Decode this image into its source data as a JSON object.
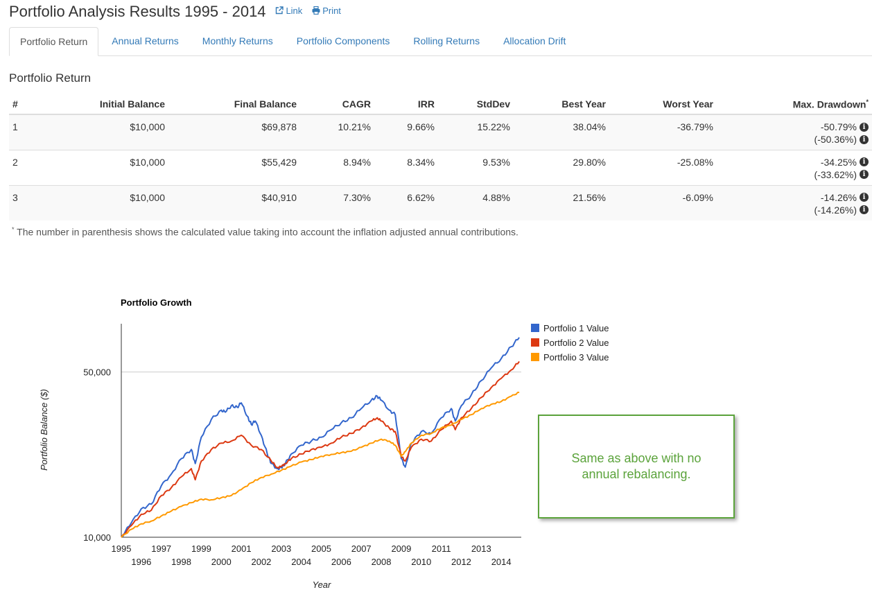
{
  "header": {
    "title": "Portfolio Analysis Results 1995 - 2014",
    "link_label": "Link",
    "print_label": "Print"
  },
  "tabs": [
    "Portfolio Return",
    "Annual Returns",
    "Monthly Returns",
    "Portfolio Components",
    "Rolling Returns",
    "Allocation Drift"
  ],
  "section_title": "Portfolio Return",
  "table": {
    "headers": [
      "#",
      "Initial Balance",
      "Final Balance",
      "CAGR",
      "IRR",
      "StdDev",
      "Best Year",
      "Worst Year",
      "Max. Drawdown"
    ],
    "header_note_marker": "*",
    "rows": [
      {
        "num": "1",
        "initial": "$10,000",
        "final": "$69,878",
        "cagr": "10.21%",
        "irr": "9.66%",
        "stddev": "15.22%",
        "best": "38.04%",
        "worst": "-36.79%",
        "dd": "-50.79%",
        "dd_adj": "(-50.36%)"
      },
      {
        "num": "2",
        "initial": "$10,000",
        "final": "$55,429",
        "cagr": "8.94%",
        "irr": "8.34%",
        "stddev": "9.53%",
        "best": "29.80%",
        "worst": "-25.08%",
        "dd": "-34.25%",
        "dd_adj": "(-33.62%)"
      },
      {
        "num": "3",
        "initial": "$10,000",
        "final": "$40,910",
        "cagr": "7.30%",
        "irr": "6.62%",
        "stddev": "4.88%",
        "best": "21.56%",
        "worst": "-6.09%",
        "dd": "-14.26%",
        "dd_adj": "(-14.26%)"
      }
    ]
  },
  "footnote": {
    "marker": "*",
    "text": " The number in parenthesis shows the calculated value taking into account the inflation adjusted annual contributions."
  },
  "callout": {
    "text": "Same as above with no annual rebalancing."
  },
  "colors": {
    "link": "#337ab7",
    "callout": "#5ba33b",
    "series1": "#3366cc",
    "series2": "#dc3912",
    "series3": "#ff9900"
  },
  "chart_data": {
    "type": "line",
    "title": "Portfolio Growth",
    "xlabel": "Year",
    "ylabel": "Portfolio Balance ($)",
    "yscale": "log",
    "ylim": [
      10000,
      80000
    ],
    "yticks": [
      10000,
      50000
    ],
    "ytick_labels": [
      "10,000",
      "50,000"
    ],
    "xlim": [
      1995,
      2015
    ],
    "xticks": [
      1995,
      1996,
      1997,
      1998,
      1999,
      2000,
      2001,
      2002,
      2003,
      2004,
      2005,
      2006,
      2007,
      2008,
      2009,
      2010,
      2011,
      2012,
      2013,
      2014
    ],
    "grid": true,
    "legend_position": "right",
    "series": [
      {
        "name": "Portfolio 1 Value",
        "color": "#3366cc",
        "x": [
          1995.0,
          1995.5,
          1996.0,
          1996.5,
          1997.0,
          1997.5,
          1998.0,
          1998.5,
          1998.7,
          1999.0,
          1999.5,
          2000.0,
          2000.2,
          2000.5,
          2000.8,
          2001.0,
          2001.3,
          2001.5,
          2001.7,
          2002.0,
          2002.3,
          2002.5,
          2002.8,
          2003.0,
          2003.2,
          2003.5,
          2004.0,
          2004.5,
          2005.0,
          2005.5,
          2006.0,
          2006.5,
          2007.0,
          2007.5,
          2007.8,
          2008.0,
          2008.4,
          2008.7,
          2009.0,
          2009.2,
          2009.5,
          2010.0,
          2010.5,
          2011.0,
          2011.5,
          2011.7,
          2012.0,
          2012.5,
          2013.0,
          2013.5,
          2014.0,
          2014.5,
          2014.9
        ],
        "values": [
          10000,
          11500,
          13200,
          13800,
          16500,
          18500,
          21500,
          23500,
          20500,
          26500,
          31500,
          34500,
          33800,
          36000,
          35500,
          37000,
          32500,
          30000,
          31000,
          27000,
          22500,
          20500,
          19500,
          19700,
          20500,
          22500,
          24500,
          25500,
          26500,
          28500,
          30500,
          32000,
          35000,
          38000,
          39500,
          38000,
          34500,
          33000,
          21500,
          19800,
          25000,
          28000,
          27500,
          32000,
          35000,
          31000,
          36000,
          40000,
          46000,
          52000,
          57000,
          64000,
          70000
        ]
      },
      {
        "name": "Portfolio 2 Value",
        "color": "#dc3912",
        "x": [
          1995.0,
          1995.5,
          1996.0,
          1996.5,
          1997.0,
          1997.5,
          1998.0,
          1998.5,
          1998.7,
          1999.0,
          1999.5,
          2000.0,
          2000.5,
          2001.0,
          2001.5,
          2002.0,
          2002.5,
          2002.8,
          2003.0,
          2003.2,
          2003.5,
          2004.0,
          2004.5,
          2005.0,
          2005.5,
          2006.0,
          2006.5,
          2007.0,
          2007.5,
          2007.8,
          2008.0,
          2008.4,
          2008.7,
          2009.0,
          2009.2,
          2009.5,
          2010.0,
          2010.5,
          2011.0,
          2011.5,
          2011.7,
          2012.0,
          2012.5,
          2013.0,
          2013.5,
          2014.0,
          2014.5,
          2014.9
        ],
        "values": [
          10000,
          11200,
          12500,
          13000,
          15000,
          16200,
          18000,
          19500,
          17500,
          21000,
          23500,
          25000,
          25500,
          27000,
          24500,
          23500,
          21000,
          19700,
          19900,
          20500,
          21500,
          22500,
          23500,
          24000,
          25000,
          26500,
          27500,
          29000,
          31000,
          32000,
          31000,
          29000,
          28000,
          22000,
          21000,
          24000,
          26000,
          25500,
          28500,
          31000,
          28500,
          32000,
          35000,
          39000,
          43000,
          47000,
          51000,
          55400
        ]
      },
      {
        "name": "Portfolio 3 Value",
        "color": "#ff9900",
        "x": [
          1995.0,
          1995.5,
          1996.0,
          1996.5,
          1997.0,
          1997.5,
          1998.0,
          1998.5,
          1999.0,
          1999.5,
          2000.0,
          2000.5,
          2001.0,
          2001.5,
          2002.0,
          2002.5,
          2003.0,
          2003.5,
          2004.0,
          2004.5,
          2005.0,
          2005.5,
          2006.0,
          2006.5,
          2007.0,
          2007.5,
          2008.0,
          2008.4,
          2008.7,
          2009.0,
          2009.2,
          2009.5,
          2010.0,
          2010.5,
          2011.0,
          2011.5,
          2012.0,
          2012.5,
          2013.0,
          2013.5,
          2014.0,
          2014.5,
          2014.9
        ],
        "values": [
          10000,
          10800,
          11400,
          11700,
          12300,
          12900,
          13500,
          14000,
          14500,
          14400,
          14700,
          15000,
          15900,
          17000,
          17900,
          18500,
          19200,
          20000,
          20800,
          21300,
          22000,
          22400,
          22800,
          23100,
          24000,
          25000,
          26000,
          25500,
          24500,
          22000,
          23000,
          25000,
          27000,
          27500,
          29000,
          29800,
          31500,
          33000,
          35000,
          36500,
          37500,
          39500,
          41000
        ]
      }
    ]
  }
}
